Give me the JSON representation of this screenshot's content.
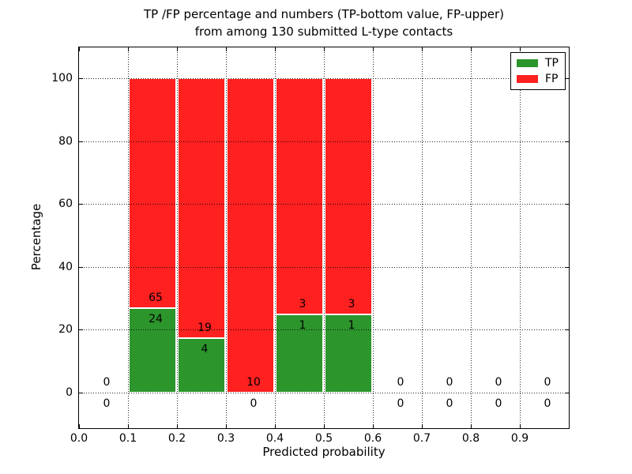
{
  "title": {
    "line1": "TP /FP percentage and numbers (TP-bottom value, FP-upper)",
    "line2": "from among 130 submitted L-type contacts"
  },
  "axes": {
    "xlabel": "Predicted probability",
    "ylabel": "Percentage",
    "xticks": [
      {
        "v": 0.0,
        "label": "0.0"
      },
      {
        "v": 0.1,
        "label": "0.1"
      },
      {
        "v": 0.2,
        "label": "0.2"
      },
      {
        "v": 0.3,
        "label": "0.3"
      },
      {
        "v": 0.4,
        "label": "0.4"
      },
      {
        "v": 0.5,
        "label": "0.5"
      },
      {
        "v": 0.6,
        "label": "0.6"
      },
      {
        "v": 0.7,
        "label": "0.7"
      },
      {
        "v": 0.8,
        "label": "0.8"
      },
      {
        "v": 0.9,
        "label": "0.9"
      }
    ],
    "yticks": [
      {
        "v": 0,
        "label": "0"
      },
      {
        "v": 20,
        "label": "20"
      },
      {
        "v": 40,
        "label": "40"
      },
      {
        "v": 60,
        "label": "60"
      },
      {
        "v": 80,
        "label": "80"
      },
      {
        "v": 100,
        "label": "100"
      }
    ]
  },
  "legend": {
    "items": [
      {
        "label": "TP",
        "color": "#2c952c"
      },
      {
        "label": "FP",
        "color": "#ff2020"
      }
    ]
  },
  "colors": {
    "tp": "#2c952c",
    "fp": "#ff2020",
    "grid": "#000000",
    "text": "#000000",
    "background": "#ffffff"
  },
  "chart_data": {
    "type": "bar",
    "stacked": true,
    "title": "TP /FP percentage and numbers (TP-bottom value, FP-upper) from among 130 submitted L-type contacts",
    "xlabel": "Predicted probability",
    "ylabel": "Percentage",
    "xlim": [
      0.0,
      1.0
    ],
    "ylim": [
      -11,
      110
    ],
    "grid": "dotted",
    "legend_position": "upper right",
    "total_submitted": 130,
    "bin_width": 0.1,
    "categories": [
      "0.0-0.1",
      "0.1-0.2",
      "0.2-0.3",
      "0.3-0.4",
      "0.4-0.5",
      "0.5-0.6",
      "0.6-0.7",
      "0.7-0.8",
      "0.8-0.9",
      "0.9-1.0"
    ],
    "series": [
      {
        "name": "TP",
        "color": "#2c952c",
        "counts": [
          0,
          24,
          4,
          0,
          1,
          1,
          0,
          0,
          0,
          0
        ],
        "percent": [
          0,
          26.97,
          17.39,
          0,
          25,
          25,
          0,
          0,
          0,
          0
        ]
      },
      {
        "name": "FP",
        "color": "#ff2020",
        "counts": [
          0,
          65,
          19,
          10,
          3,
          3,
          0,
          0,
          0,
          0
        ],
        "percent": [
          0,
          73.03,
          82.61,
          100,
          75,
          75,
          0,
          0,
          0,
          0
        ]
      }
    ]
  }
}
